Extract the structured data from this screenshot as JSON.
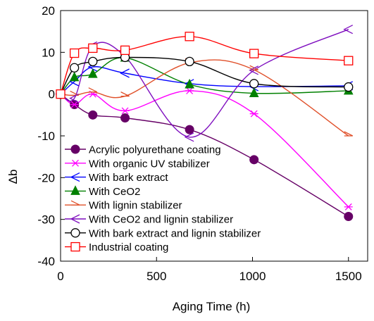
{
  "chart_data": {
    "type": "line",
    "title": "",
    "xlabel": "Aging Time (h)",
    "ylabel": "Δb",
    "xlim": [
      0,
      1600
    ],
    "ylim": [
      -40,
      20
    ],
    "xticks": [
      0,
      500,
      1000,
      1500
    ],
    "yticks": [
      -40,
      -30,
      -20,
      -10,
      0,
      10,
      20
    ],
    "grid": false,
    "legend_position": "lower-left",
    "series": [
      {
        "name": "Acrylic polyurethane coating",
        "color": "#660066",
        "marker": "filled-circle",
        "x": [
          0,
          72,
          168,
          336,
          672,
          1008,
          1500
        ],
        "y": [
          0,
          -2.5,
          -5,
          -5.7,
          -8.5,
          -15.7,
          -29.3
        ]
      },
      {
        "name": "With organic UV stabilizer",
        "color": "#FF00FF",
        "marker": "asterisk",
        "x": [
          0,
          72,
          168,
          336,
          672,
          1008,
          1500
        ],
        "y": [
          0,
          -2.5,
          0,
          -4,
          0.8,
          -4.7,
          -27
        ]
      },
      {
        "name": "With bark extract",
        "color": "#0000FF",
        "marker": "open-diamond",
        "x": [
          0,
          72,
          168,
          336,
          672,
          1008,
          1500
        ],
        "y": [
          0,
          3,
          6.5,
          5,
          2.5,
          1.8,
          2
        ]
      },
      {
        "name": "With CeO2",
        "color": "#008000",
        "marker": "filled-triangle",
        "x": [
          0,
          72,
          168,
          336,
          672,
          1008,
          1500
        ],
        "y": [
          0,
          4,
          4.8,
          8.7,
          2.3,
          0.2,
          0.8
        ]
      },
      {
        "name": "With lignin stabilizer",
        "color": "#E0502A",
        "marker": "open-half-triangle",
        "x": [
          0,
          72,
          168,
          336,
          672,
          1008,
          1500
        ],
        "y": [
          0,
          -0.3,
          0.5,
          -0.5,
          7.5,
          5.8,
          -10
        ]
      },
      {
        "name": "With CeO2 and lignin stabilizer",
        "color": "#7F0FBF",
        "marker": "open-diamond",
        "x": [
          0,
          72,
          168,
          336,
          672,
          1008,
          1500
        ],
        "y": [
          0,
          -1,
          11.5,
          9,
          -10.3,
          5.7,
          15.5
        ]
      },
      {
        "name": "With bark extract and lignin stabilizer",
        "color": "#000000",
        "marker": "open-circle",
        "x": [
          0,
          72,
          168,
          336,
          672,
          1008,
          1500
        ],
        "y": [
          0,
          6.3,
          7.8,
          8.8,
          7.8,
          2.5,
          1.7
        ]
      },
      {
        "name": "Industrial coating",
        "color": "#FF0000",
        "marker": "open-square",
        "x": [
          0,
          72,
          168,
          336,
          672,
          1008,
          1500
        ],
        "y": [
          0,
          9.8,
          11,
          10.5,
          13.8,
          9.7,
          8
        ]
      }
    ]
  }
}
